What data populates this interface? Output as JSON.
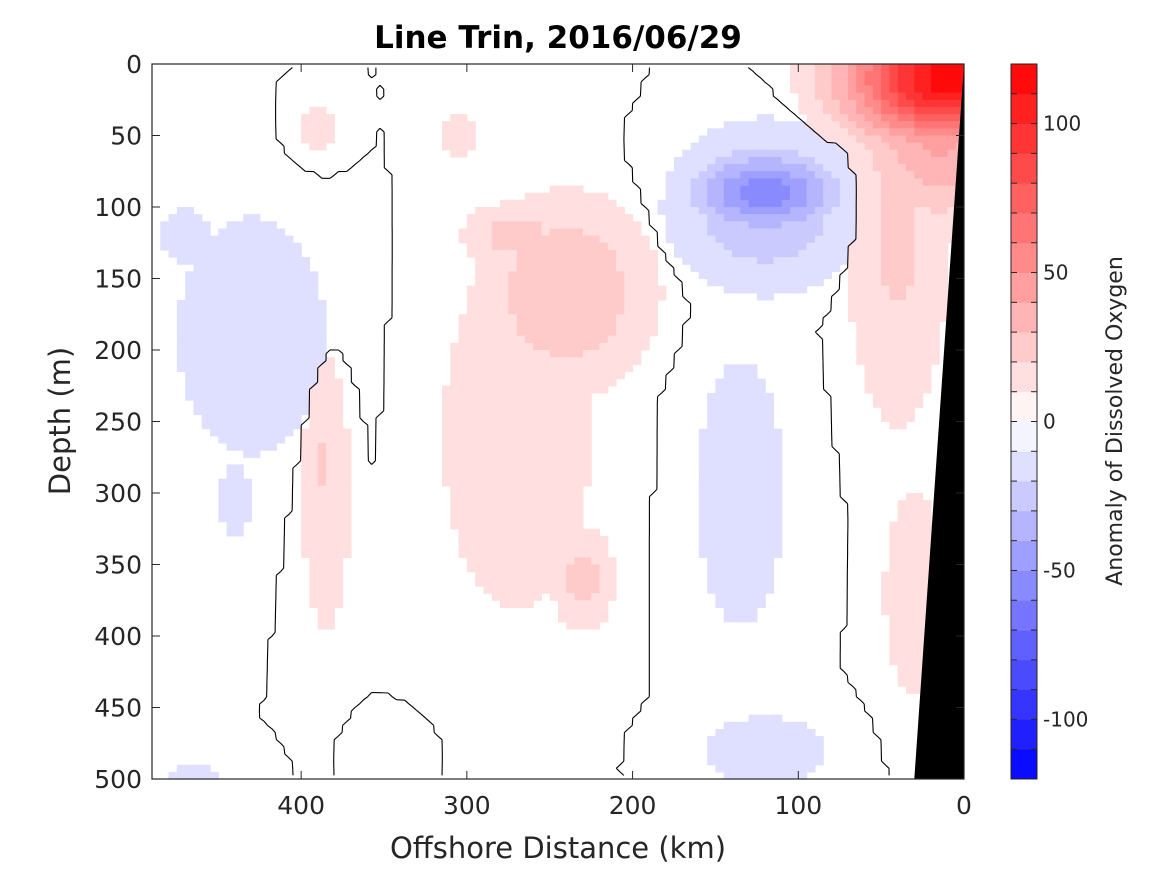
{
  "chart_data": {
    "type": "heatmap",
    "title": "Line Trin, 2016/06/29",
    "xlabel": "Offshore Distance (km)",
    "ylabel": "Depth (m)",
    "xlim": [
      490,
      0
    ],
    "ylim": [
      500,
      0
    ],
    "x_ticks": [
      "400",
      "300",
      "200",
      "100",
      "0"
    ],
    "x_tick_values": [
      400,
      300,
      200,
      100,
      0
    ],
    "y_ticks": [
      "0",
      "50",
      "100",
      "150",
      "200",
      "250",
      "300",
      "350",
      "400",
      "450",
      "500"
    ],
    "y_tick_values": [
      0,
      50,
      100,
      150,
      200,
      250,
      300,
      350,
      400,
      450,
      500
    ],
    "colorbar": {
      "label": "Anomaly of Dissolved Oxygen",
      "range": [
        -120,
        120
      ],
      "ticks": [
        "100",
        "50",
        "0",
        "-50",
        "-100"
      ],
      "tick_values": [
        100,
        50,
        0,
        -50,
        -100
      ],
      "interval": 10,
      "min_color": "#0000ff",
      "mid_color": "#ffffff",
      "max_color": "#ff0000"
    },
    "contour_level": 0,
    "blobs": [
      {
        "x": 10,
        "y": 10,
        "rx": 60,
        "ry": 45,
        "value": 115
      },
      {
        "x": 15,
        "y": 40,
        "rx": 50,
        "ry": 70,
        "value": 45
      },
      {
        "x": 40,
        "y": 120,
        "rx": 35,
        "ry": 150,
        "value": 22
      },
      {
        "x": 30,
        "y": 370,
        "rx": 28,
        "ry": 110,
        "value": 15
      },
      {
        "x": 120,
        "y": 90,
        "rx": 45,
        "ry": 30,
        "value": -55
      },
      {
        "x": 120,
        "y": 100,
        "rx": 60,
        "ry": 60,
        "value": -30
      },
      {
        "x": 135,
        "y": 300,
        "rx": 45,
        "ry": 160,
        "value": -14
      },
      {
        "x": 120,
        "y": 480,
        "rx": 60,
        "ry": 40,
        "value": -14
      },
      {
        "x": 240,
        "y": 160,
        "rx": 55,
        "ry": 70,
        "value": 30
      },
      {
        "x": 270,
        "y": 120,
        "rx": 35,
        "ry": 25,
        "value": 25
      },
      {
        "x": 230,
        "y": 360,
        "rx": 20,
        "ry": 40,
        "value": 24
      },
      {
        "x": 270,
        "y": 260,
        "rx": 70,
        "ry": 190,
        "value": 15
      },
      {
        "x": 305,
        "y": 50,
        "rx": 25,
        "ry": 35,
        "value": 12
      },
      {
        "x": 385,
        "y": 300,
        "rx": 22,
        "ry": 150,
        "value": 15
      },
      {
        "x": 388,
        "y": 280,
        "rx": 10,
        "ry": 30,
        "value": 24
      },
      {
        "x": 390,
        "y": 45,
        "rx": 25,
        "ry": 35,
        "value": 12
      },
      {
        "x": 430,
        "y": 190,
        "rx": 70,
        "ry": 130,
        "value": -15
      },
      {
        "x": 470,
        "y": 120,
        "rx": 35,
        "ry": 45,
        "value": -12
      },
      {
        "x": 465,
        "y": 500,
        "rx": 40,
        "ry": 25,
        "value": -12
      },
      {
        "x": 350,
        "y": 480,
        "rx": 30,
        "ry": 30,
        "value": -10
      },
      {
        "x": 440,
        "y": 305,
        "rx": 22,
        "ry": 60,
        "value": -12
      },
      {
        "x": 20,
        "y": 250,
        "rx": 25,
        "ry": 100,
        "value": 10
      }
    ],
    "topography": {
      "fill": "#000000",
      "polygon": [
        [
          0,
          0
        ],
        [
          0,
          500
        ],
        [
          30,
          500
        ]
      ]
    }
  }
}
